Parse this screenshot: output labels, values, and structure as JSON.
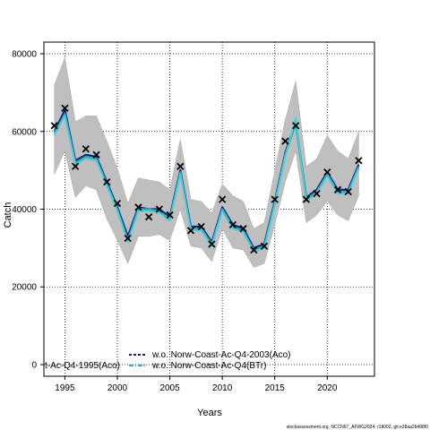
{
  "chart_data": {
    "type": "line",
    "xlabel": "Years",
    "ylabel": "Catch",
    "xlim": [
      1993,
      2024.5
    ],
    "ylim": [
      -3000,
      83000
    ],
    "xticks": [
      1995,
      2000,
      2005,
      2010,
      2015,
      2020
    ],
    "yticks": [
      0,
      20000,
      40000,
      60000,
      80000
    ],
    "grid": true,
    "legend_entries": [
      "t-Ac-Q4-1995(Aco)",
      "w.o. Norw-Coast-Ac-Q4-2003(Aco)",
      "w.o. Norw-Coast-Ac-Q4(BTr)"
    ],
    "credit": "stockassessment.org, NCCN67_AFWG2024, r18002, git:e38aa2b498f0",
    "x": [
      1994,
      1995,
      1996,
      1997,
      1998,
      1999,
      2000,
      2001,
      2002,
      2003,
      2004,
      2005,
      2006,
      2007,
      2008,
      2009,
      2010,
      2011,
      2012,
      2013,
      2014,
      2015,
      2016,
      2017,
      2018,
      2019,
      2020,
      2021,
      2022,
      2023
    ],
    "observed": [
      61500,
      66000,
      51000,
      55500,
      54000,
      47000,
      41500,
      32500,
      40500,
      38000,
      40000,
      38500,
      51000,
      34500,
      35500,
      31000,
      42500,
      36000,
      35000,
      29500,
      30500,
      42500,
      57500,
      61500,
      42500,
      44000,
      49500,
      45000,
      44500,
      52500
    ],
    "ci_upper": [
      72000,
      79000,
      62500,
      64000,
      64000,
      57500,
      50500,
      41500,
      48000,
      47500,
      47000,
      45000,
      58000,
      42500,
      42000,
      39000,
      46500,
      43500,
      42000,
      35000,
      36500,
      50000,
      63000,
      73000,
      51000,
      53000,
      59000,
      55000,
      53000,
      60000
    ],
    "ci_lower": [
      49000,
      55000,
      43000,
      46000,
      45000,
      37500,
      32000,
      26000,
      33000,
      33000,
      33500,
      32000,
      40000,
      30500,
      30000,
      26500,
      35000,
      30000,
      29500,
      25000,
      26000,
      36000,
      47000,
      55000,
      36500,
      38500,
      42000,
      38500,
      37000,
      43500
    ],
    "series": [
      {
        "values": [
          60000,
          65500,
          52500,
          54000,
          53500,
          47000,
          40500,
          33000,
          40500,
          40000,
          40000,
          38000,
          50000,
          35500,
          35500,
          31500,
          40500,
          36000,
          35000,
          30000,
          31000,
          42000,
          54500,
          62500,
          43000,
          45000,
          49500,
          45000,
          45000,
          51500
        ]
      },
      {
        "values": [
          59500,
          64500,
          52000,
          53500,
          53000,
          46500,
          40000,
          32000,
          40000,
          40000,
          39500,
          37500,
          49500,
          35000,
          35000,
          31000,
          40000,
          35500,
          34500,
          29500,
          30500,
          41500,
          54000,
          62000,
          42500,
          44500,
          49000,
          44500,
          44500,
          51000
        ]
      },
      {
        "values": [
          59000,
          64000,
          51500,
          53000,
          52500,
          46000,
          39500,
          31500,
          39500,
          39500,
          39000,
          37000,
          49000,
          34500,
          34500,
          30500,
          39500,
          35000,
          34000,
          29000,
          30000,
          41000,
          53500,
          63500,
          42000,
          44000,
          48500,
          44000,
          44000,
          50500
        ]
      }
    ],
    "colors": {
      "ci_band": "#bfbfbf",
      "series_dark": "#1a1a80",
      "series_teal": "#3aa8a8",
      "series_cyan": "#41d2e3",
      "observed": "#000000"
    }
  }
}
